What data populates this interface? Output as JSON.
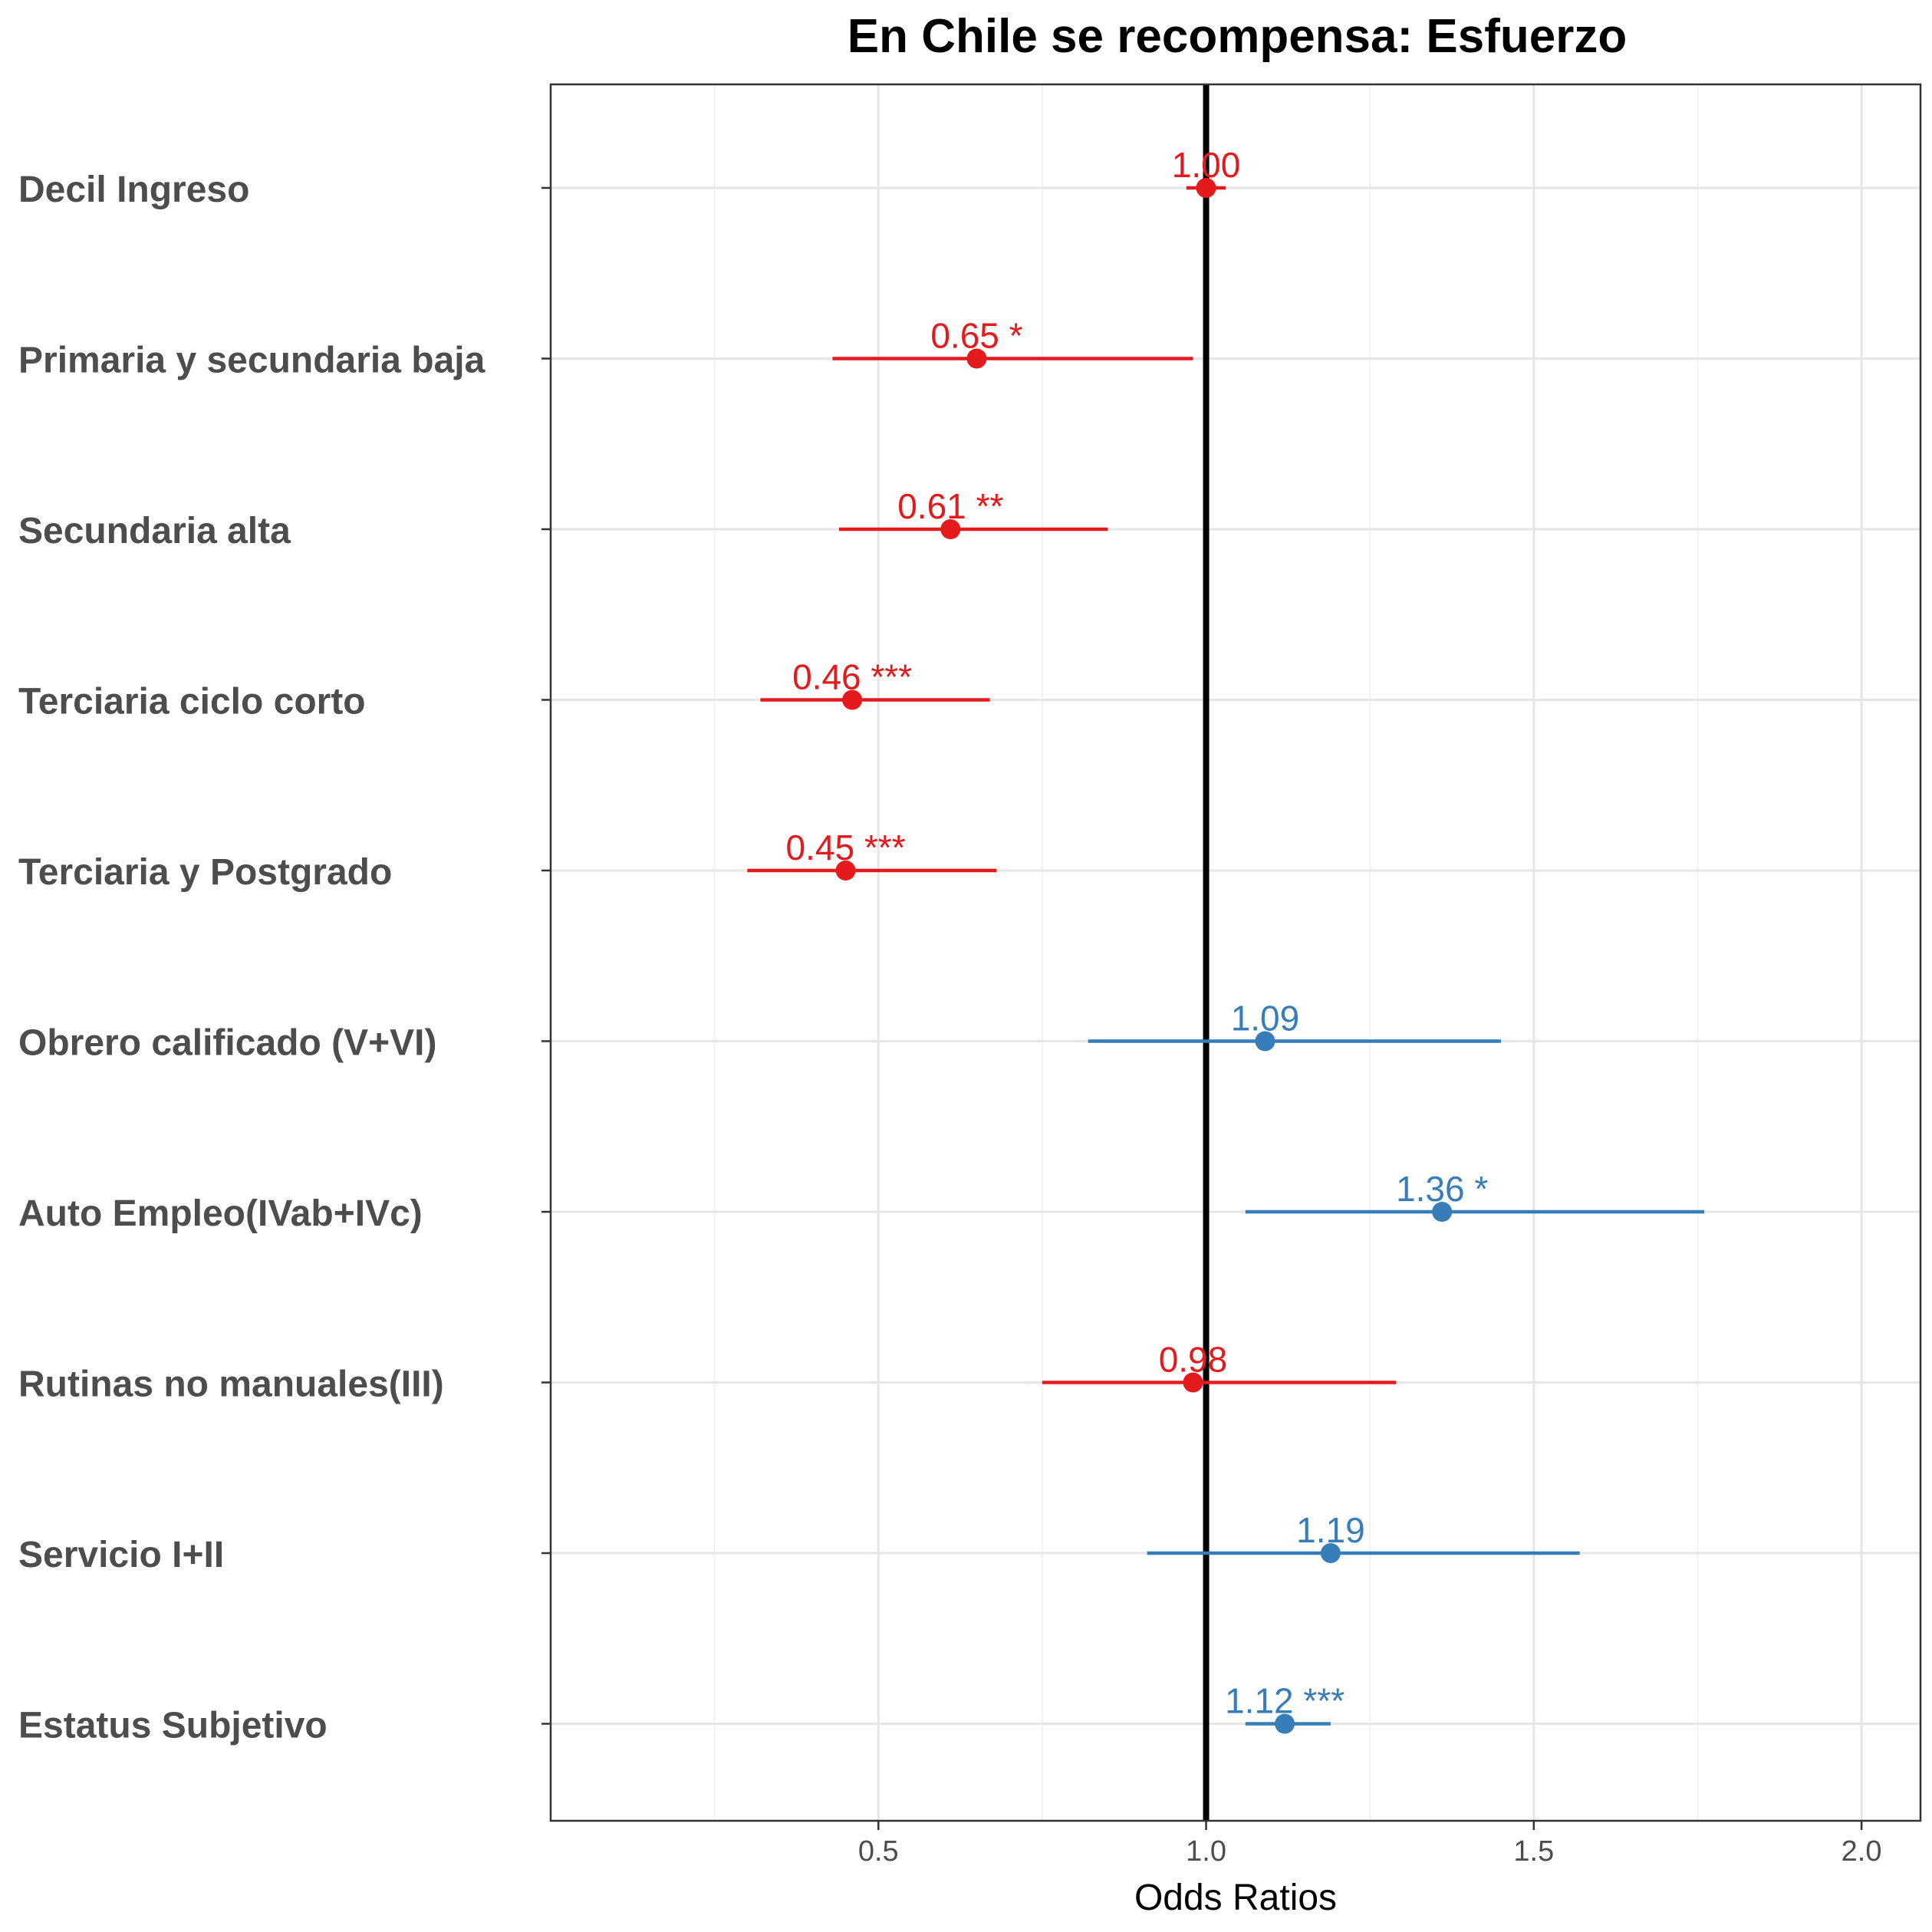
{
  "chart_data": {
    "type": "forest",
    "title": "En Chile se recompensa: Esfuerzo",
    "xlabel": "Odds Ratios",
    "ylabel": "",
    "xlim": [
      0.0,
      2.09
    ],
    "xticks": [
      0.5,
      1.0,
      1.5,
      2.0
    ],
    "xtick_labels": [
      "0.5",
      "1.0",
      "1.5",
      "2.0"
    ],
    "reference_line": 1.0,
    "grid": true,
    "colors": {
      "negative": "#E41A1C",
      "positive": "#377EB8",
      "reference": "#000000"
    },
    "items": [
      {
        "label": "Decil Ingreso",
        "estimate": 1.0,
        "low": 0.97,
        "high": 1.03,
        "text": "1.00",
        "direction": "negative"
      },
      {
        "label": "Primaria y secundaria baja",
        "estimate": 0.65,
        "low": 0.43,
        "high": 0.98,
        "text": "0.65 *",
        "direction": "negative"
      },
      {
        "label": "Secundaria alta",
        "estimate": 0.61,
        "low": 0.44,
        "high": 0.85,
        "text": "0.61 **",
        "direction": "negative"
      },
      {
        "label": "Terciaria ciclo corto",
        "estimate": 0.46,
        "low": 0.32,
        "high": 0.67,
        "text": "0.46 ***",
        "direction": "negative"
      },
      {
        "label": "Terciaria y Postgrado",
        "estimate": 0.45,
        "low": 0.3,
        "high": 0.68,
        "text": "0.45 ***",
        "direction": "negative"
      },
      {
        "label": "Obrero calificado (V+VI)",
        "estimate": 1.09,
        "low": 0.82,
        "high": 1.45,
        "text": "1.09",
        "direction": "positive"
      },
      {
        "label": "Auto Empleo(IVab+IVc)",
        "estimate": 1.36,
        "low": 1.06,
        "high": 1.76,
        "text": "1.36 *",
        "direction": "positive"
      },
      {
        "label": "Rutinas no manuales(III)",
        "estimate": 0.98,
        "low": 0.75,
        "high": 1.29,
        "text": "0.98",
        "direction": "negative"
      },
      {
        "label": "Servicio I+II",
        "estimate": 1.19,
        "low": 0.91,
        "high": 1.57,
        "text": "1.19",
        "direction": "positive"
      },
      {
        "label": "Estatus Subjetivo",
        "estimate": 1.12,
        "low": 1.06,
        "high": 1.19,
        "text": "1.12 ***",
        "direction": "positive"
      }
    ]
  }
}
